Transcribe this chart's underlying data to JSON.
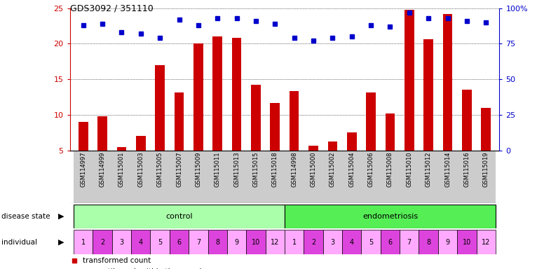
{
  "title": "GDS3092 / 351110",
  "samples": [
    "GSM114997",
    "GSM114999",
    "GSM115001",
    "GSM115003",
    "GSM115005",
    "GSM115007",
    "GSM115009",
    "GSM115011",
    "GSM115013",
    "GSM115015",
    "GSM115018",
    "GSM114998",
    "GSM115000",
    "GSM115002",
    "GSM115004",
    "GSM115006",
    "GSM115008",
    "GSM115010",
    "GSM115012",
    "GSM115014",
    "GSM115016",
    "GSM115019"
  ],
  "bar_values": [
    9.0,
    9.8,
    5.5,
    7.1,
    17.0,
    13.2,
    20.0,
    21.0,
    20.8,
    14.2,
    11.7,
    13.4,
    5.7,
    6.3,
    7.6,
    13.2,
    10.2,
    24.8,
    20.6,
    24.2,
    13.6,
    11.0
  ],
  "dot_values_pct": [
    88,
    89,
    83,
    82,
    79,
    92,
    88,
    93,
    93,
    91,
    89,
    79,
    77,
    79,
    80,
    88,
    87,
    97,
    93,
    93,
    91,
    90
  ],
  "individuals_control": [
    "1",
    "2",
    "3",
    "4",
    "5",
    "6",
    "7",
    "8",
    "9",
    "10",
    "12"
  ],
  "individuals_endo": [
    "1",
    "2",
    "3",
    "4",
    "5",
    "6",
    "7",
    "8",
    "9",
    "10",
    "12"
  ],
  "n_control": 11,
  "n_endo": 11,
  "ylim_left": [
    5,
    25
  ],
  "ylim_right": [
    0,
    100
  ],
  "yticks_left": [
    5,
    10,
    15,
    20,
    25
  ],
  "yticks_right": [
    0,
    25,
    50,
    75,
    100
  ],
  "bar_color": "#cc0000",
  "dot_color": "#0000cc",
  "control_color": "#aaffaa",
  "endo_color": "#55ee55",
  "ind_color_light": "#ffaaff",
  "ind_color_dark": "#dd44dd",
  "sample_bg_color": "#cccccc",
  "right_axis_color": "#0000cc",
  "left_axis_color": "#cc0000",
  "legend_square_size": 5
}
